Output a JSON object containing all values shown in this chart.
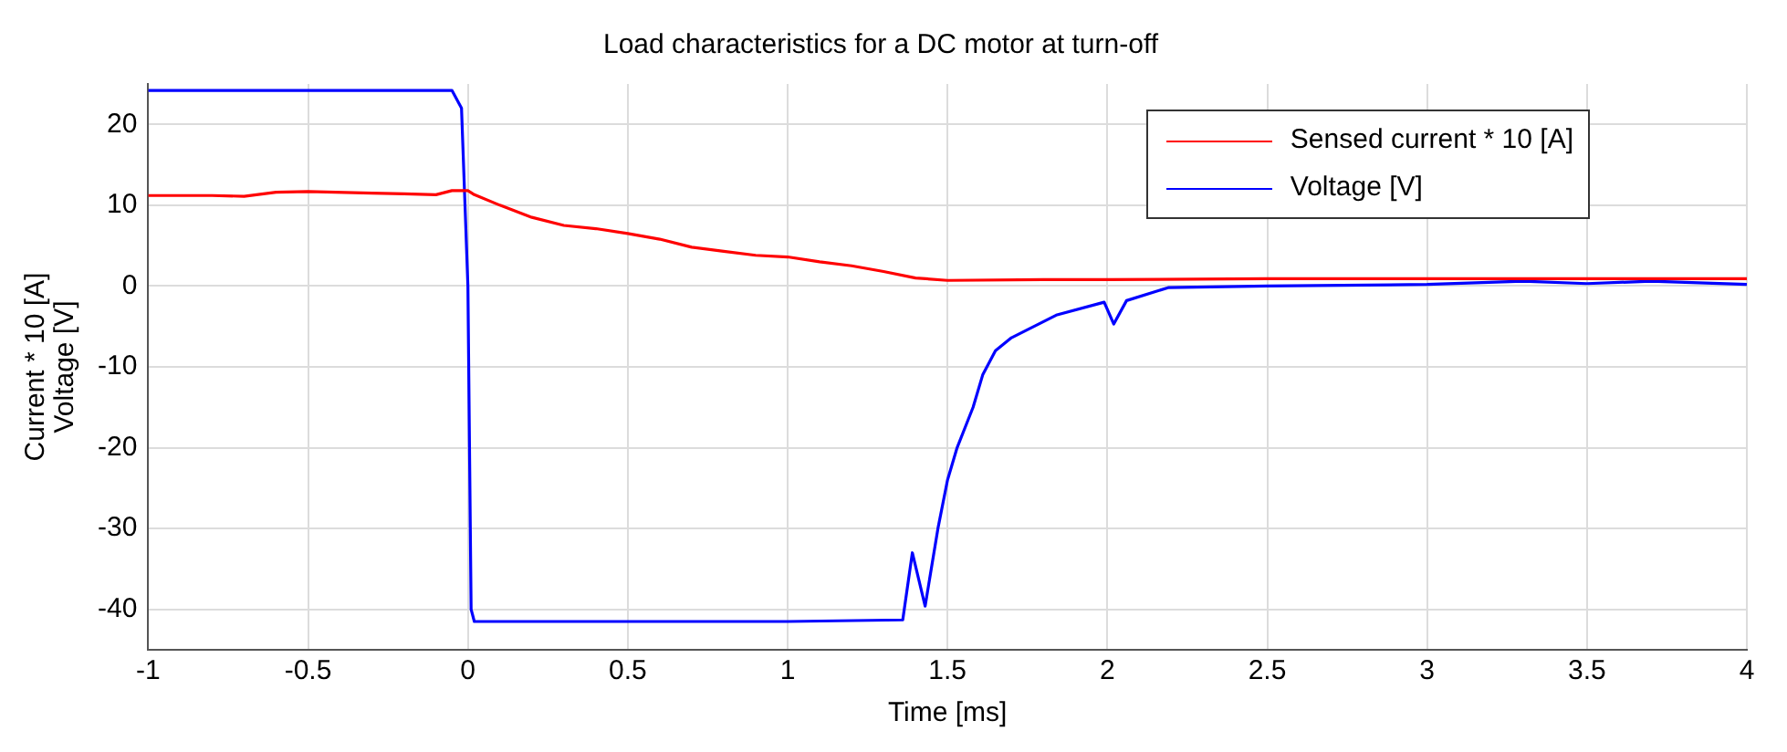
{
  "chart_data": {
    "type": "line",
    "title": "Load characteristics for a DC motor at turn-off",
    "xlabel": "Time [ms]",
    "ylabel": "Current * 10 [A]\nVoltage [V]",
    "xlim": [
      -1,
      4
    ],
    "xticks": [
      -1,
      -0.5,
      0,
      0.5,
      1,
      1.5,
      2,
      2.5,
      3,
      3.5,
      4
    ],
    "ylim": [
      -45,
      25
    ],
    "yticks": [
      -40,
      -30,
      -20,
      -10,
      0,
      10,
      20
    ],
    "grid": true,
    "legend": "top right",
    "marker": "none",
    "line_style": "solid",
    "series": [
      {
        "name": "Sensed current * 10 [A]",
        "color": "#ff0000",
        "x": [
          -1,
          -0.8,
          -0.7,
          -0.6,
          -0.5,
          -0.3,
          -0.2,
          -0.1,
          -0.05,
          0,
          0.02,
          0.1,
          0.2,
          0.3,
          0.4,
          0.5,
          0.6,
          0.7,
          0.8,
          0.9,
          1.0,
          1.1,
          1.2,
          1.3,
          1.4,
          1.5,
          1.8,
          2.0,
          2.5,
          3.0,
          3.5,
          4.0
        ],
        "values": [
          11.2,
          11.2,
          11.1,
          11.6,
          11.7,
          11.5,
          11.4,
          11.3,
          11.8,
          11.8,
          11.3,
          10,
          8.5,
          7.5,
          7.1,
          6.5,
          5.8,
          4.8,
          4.3,
          3.8,
          3.6,
          3.0,
          2.5,
          1.8,
          1.0,
          0.7,
          0.8,
          0.8,
          0.9,
          0.9,
          0.9,
          0.9
        ]
      },
      {
        "name": "Voltage [V]",
        "color": "#0000ff",
        "x": [
          -1,
          -0.5,
          -0.05,
          -0.02,
          0,
          0.01,
          0.02,
          0.5,
          1.0,
          1.36,
          1.39,
          1.43,
          1.47,
          1.5,
          1.53,
          1.56,
          1.58,
          1.61,
          1.65,
          1.7,
          1.84,
          1.99,
          2.02,
          2.06,
          2.19,
          2.5,
          3.0,
          3.3,
          3.5,
          3.7,
          4.0
        ],
        "values": [
          24.2,
          24.2,
          24.2,
          22,
          0,
          -40,
          -41.5,
          -41.5,
          -41.5,
          -41.3,
          -33,
          -39.6,
          -30,
          -24,
          -20,
          -17,
          -15,
          -11,
          -8,
          -6.4,
          -3.6,
          -2,
          -4.7,
          -1.8,
          -0.2,
          0,
          0.2,
          0.6,
          0.3,
          0.6,
          0.2
        ]
      }
    ]
  }
}
